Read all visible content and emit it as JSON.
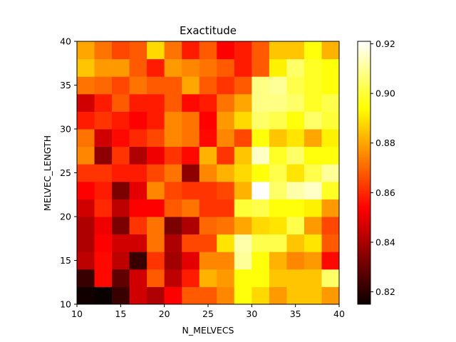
{
  "chart_data": {
    "type": "heatmap",
    "title": "Exactitude",
    "xlabel": "N_MELVECS",
    "ylabel": "MELVEC_LENGTH",
    "xlim": [
      10,
      40
    ],
    "ylim": [
      10,
      40
    ],
    "x_ticks": [
      "10",
      "15",
      "20",
      "25",
      "30",
      "35",
      "40"
    ],
    "y_ticks": [
      "10",
      "15",
      "20",
      "25",
      "30",
      "35",
      "40"
    ],
    "colormap": "hot",
    "colorbar": {
      "min": 0.815,
      "max": 0.921,
      "ticks": [
        "0.82",
        "0.84",
        "0.86",
        "0.88",
        "0.90",
        "0.92"
      ]
    },
    "grid_note": "rows listed from y=10 (bottom) to y=40 (top), columns from x=10 to x=40, 15x15 cells of width 2",
    "z": [
      [
        0.816,
        0.815,
        0.822,
        0.845,
        0.84,
        0.852,
        0.868,
        0.868,
        0.875,
        0.895,
        0.888,
        0.878,
        0.885,
        0.885,
        0.878
      ],
      [
        0.822,
        0.855,
        0.828,
        0.845,
        0.868,
        0.842,
        0.858,
        0.882,
        0.878,
        0.895,
        0.895,
        0.885,
        0.885,
        0.885,
        0.905
      ],
      [
        0.842,
        0.855,
        0.842,
        0.822,
        0.862,
        0.838,
        0.848,
        0.875,
        0.875,
        0.91,
        0.895,
        0.882,
        0.875,
        0.878,
        0.855
      ],
      [
        0.84,
        0.852,
        0.845,
        0.845,
        0.872,
        0.84,
        0.865,
        0.865,
        0.89,
        0.912,
        0.902,
        0.902,
        0.885,
        0.89,
        0.868
      ],
      [
        0.84,
        0.85,
        0.832,
        0.862,
        0.872,
        0.832,
        0.84,
        0.87,
        0.872,
        0.88,
        0.888,
        0.89,
        0.902,
        0.878,
        0.865
      ],
      [
        0.845,
        0.86,
        0.842,
        0.852,
        0.852,
        0.868,
        0.872,
        0.862,
        0.862,
        0.9,
        0.902,
        0.895,
        0.895,
        0.892,
        0.878
      ],
      [
        0.852,
        0.858,
        0.832,
        0.848,
        0.875,
        0.865,
        0.862,
        0.862,
        0.865,
        0.882,
        0.921,
        0.905,
        0.912,
        0.915,
        0.898
      ],
      [
        0.862,
        0.862,
        0.858,
        0.858,
        0.865,
        0.872,
        0.835,
        0.875,
        0.882,
        0.888,
        0.895,
        0.902,
        0.89,
        0.902,
        0.91
      ],
      [
        0.875,
        0.835,
        0.862,
        0.84,
        0.85,
        0.862,
        0.855,
        0.882,
        0.862,
        0.885,
        0.915,
        0.898,
        0.905,
        0.895,
        0.895
      ],
      [
        0.872,
        0.845,
        0.855,
        0.86,
        0.865,
        0.875,
        0.872,
        0.855,
        0.875,
        0.865,
        0.895,
        0.885,
        0.89,
        0.88,
        0.892
      ],
      [
        0.858,
        0.862,
        0.858,
        0.852,
        0.858,
        0.875,
        0.872,
        0.852,
        0.878,
        0.888,
        0.905,
        0.902,
        0.895,
        0.905,
        0.9
      ],
      [
        0.845,
        0.858,
        0.868,
        0.858,
        0.858,
        0.868,
        0.855,
        0.858,
        0.872,
        0.88,
        0.908,
        0.908,
        0.905,
        0.898,
        0.902
      ],
      [
        0.872,
        0.87,
        0.865,
        0.872,
        0.868,
        0.868,
        0.88,
        0.868,
        0.862,
        0.868,
        0.908,
        0.91,
        0.902,
        0.898,
        0.895
      ],
      [
        0.885,
        0.878,
        0.878,
        0.868,
        0.858,
        0.878,
        0.875,
        0.872,
        0.868,
        0.858,
        0.868,
        0.892,
        0.905,
        0.898,
        0.895
      ],
      [
        0.88,
        0.872,
        0.865,
        0.868,
        0.888,
        0.872,
        0.858,
        0.868,
        0.852,
        0.858,
        0.868,
        0.885,
        0.885,
        0.895,
        0.882
      ]
    ]
  }
}
